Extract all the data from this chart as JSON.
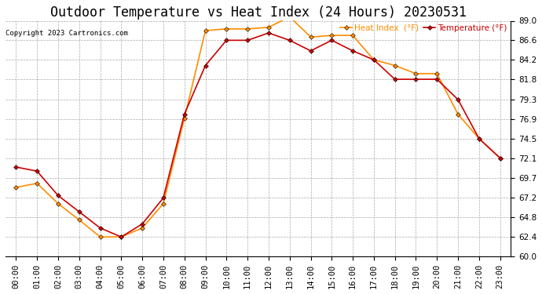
{
  "title": "Outdoor Temperature vs Heat Index (24 Hours) 20230531",
  "copyright": "Copyright 2023 Cartronics.com",
  "legend_heat": "Heat Index  (°F)",
  "legend_temp": "Temperature (°F)",
  "hours": [
    "00:00",
    "01:00",
    "02:00",
    "03:00",
    "04:00",
    "05:00",
    "06:00",
    "07:00",
    "08:00",
    "09:00",
    "10:00",
    "11:00",
    "12:00",
    "13:00",
    "14:00",
    "15:00",
    "16:00",
    "17:00",
    "18:00",
    "19:00",
    "20:00",
    "21:00",
    "22:00",
    "23:00"
  ],
  "temperature": [
    71.0,
    70.5,
    67.5,
    65.5,
    63.5,
    62.4,
    64.0,
    67.2,
    77.5,
    83.5,
    86.6,
    86.6,
    87.5,
    86.6,
    85.3,
    86.6,
    85.3,
    84.2,
    81.8,
    81.8,
    81.8,
    79.3,
    74.5,
    72.1
  ],
  "heat_index": [
    68.5,
    69.0,
    66.5,
    64.5,
    62.4,
    62.4,
    63.5,
    66.5,
    77.0,
    87.8,
    88.0,
    88.0,
    88.2,
    89.5,
    87.0,
    87.2,
    87.2,
    84.2,
    83.5,
    82.5,
    82.5,
    77.5,
    74.5,
    72.1
  ],
  "ylim_min": 60.0,
  "ylim_max": 89.0,
  "yticks": [
    60.0,
    62.4,
    64.8,
    67.2,
    69.7,
    72.1,
    74.5,
    76.9,
    79.3,
    81.8,
    84.2,
    86.6,
    89.0
  ],
  "temp_color": "#cc0000",
  "heat_color": "#ff8c00",
  "background_color": "#ffffff",
  "grid_color": "#aaaaaa",
  "title_fontsize": 12,
  "label_fontsize": 8,
  "tick_fontsize": 7.5
}
